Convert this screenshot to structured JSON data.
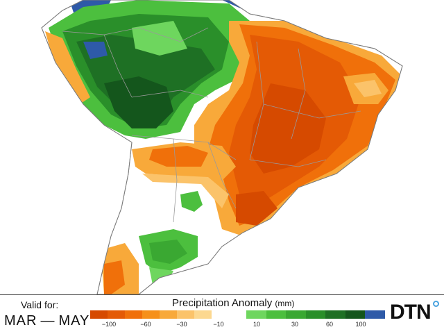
{
  "map": {
    "region": "South America",
    "land_color": "#ffffff",
    "ocean_color": "#ffffff",
    "anomaly_colors": {
      "dry_100": "#d64a00",
      "dry_80": "#e45a05",
      "dry_60": "#f0700a",
      "dry_45": "#f6901a",
      "dry_30": "#f8a93a",
      "dry_10": "#fbc36a",
      "wet_10": "#6ed65e",
      "wet_20": "#4cbf3e",
      "wet_30": "#3aa832",
      "wet_45": "#2a8f2a",
      "wet_60": "#1e7024",
      "wet_80": "#14561c",
      "wet_100": "#2e5aa8"
    }
  },
  "footer": {
    "valid_label": "Valid for:",
    "valid_range": "MAR — MAY",
    "legend_title": "Precipitation Anomaly",
    "legend_unit": "(mm)",
    "legend_ticks": [
      "−100",
      "−60",
      "−30",
      "−10",
      "10",
      "30",
      "60",
      "100"
    ],
    "logo_text": "DTN"
  },
  "legend": {
    "dry_colors": [
      "#d64a00",
      "#e45a05",
      "#f0700a",
      "#f6901a",
      "#f8a93a",
      "#fbc36a",
      "#fcd890"
    ],
    "wet_colors": [
      "#6ed65e",
      "#4cbf3e",
      "#3aa832",
      "#2a8f2a",
      "#1e7024",
      "#14561c",
      "#2e5aa8"
    ]
  }
}
